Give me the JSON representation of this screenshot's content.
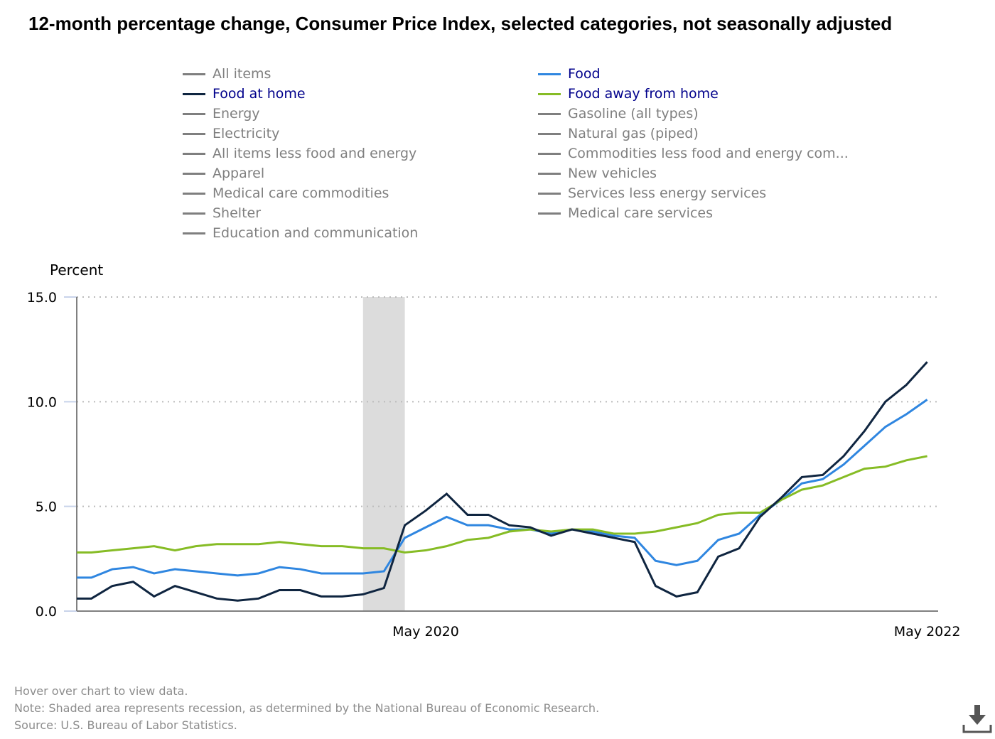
{
  "title": "12-month percentage change, Consumer Price Index, selected categories, not seasonally adjusted",
  "legend": [
    {
      "label": "All items",
      "active": false,
      "color": "#7f7f7f"
    },
    {
      "label": "Food",
      "active": true,
      "color": "#2f86e0"
    },
    {
      "label": "Food at home",
      "active": true,
      "color": "#0f2540"
    },
    {
      "label": "Food away from home",
      "active": true,
      "color": "#86bc25"
    },
    {
      "label": "Energy",
      "active": false,
      "color": "#7f7f7f"
    },
    {
      "label": "Gasoline (all types)",
      "active": false,
      "color": "#7f7f7f"
    },
    {
      "label": "Electricity",
      "active": false,
      "color": "#7f7f7f"
    },
    {
      "label": "Natural gas (piped)",
      "active": false,
      "color": "#7f7f7f"
    },
    {
      "label": "All items less food and energy",
      "active": false,
      "color": "#7f7f7f"
    },
    {
      "label": "Commodities less food and energy com...",
      "active": false,
      "color": "#7f7f7f"
    },
    {
      "label": "Apparel",
      "active": false,
      "color": "#7f7f7f"
    },
    {
      "label": "New vehicles",
      "active": false,
      "color": "#7f7f7f"
    },
    {
      "label": "Medical care commodities",
      "active": false,
      "color": "#7f7f7f"
    },
    {
      "label": "Services less energy services",
      "active": false,
      "color": "#7f7f7f"
    },
    {
      "label": "Shelter",
      "active": false,
      "color": "#7f7f7f"
    },
    {
      "label": "Medical care services",
      "active": false,
      "color": "#7f7f7f"
    },
    {
      "label": "Education and communication",
      "active": false,
      "color": "#7f7f7f"
    }
  ],
  "chart_data": {
    "type": "line",
    "title": "12-month percentage change, Consumer Price Index, selected categories, not seasonally adjusted",
    "ylabel": "Percent",
    "xlabel": "",
    "ylim": [
      0,
      15
    ],
    "y_ticks": [
      "0.0",
      "5.0",
      "10.0",
      "15.0"
    ],
    "y_tick_values": [
      0,
      5,
      10,
      15
    ],
    "x_start_month": "2018-12",
    "x_min_month_index": 0.6,
    "x_ticks": [
      {
        "label": "May 2020",
        "month_index": 17
      },
      {
        "label": "May 2022",
        "month_index": 41
      }
    ],
    "recession": {
      "start_month_index": 14,
      "end_month_index": 16
    },
    "grid": true,
    "series": [
      {
        "name": "Food",
        "color": "#2f86e0",
        "values": [
          1.6,
          1.6,
          2.0,
          2.1,
          1.8,
          2.0,
          1.9,
          1.8,
          1.7,
          1.8,
          2.1,
          2.0,
          1.8,
          1.8,
          1.8,
          1.9,
          3.5,
          4.0,
          4.5,
          4.1,
          4.1,
          3.9,
          3.9,
          3.7,
          3.9,
          3.8,
          3.6,
          3.5,
          2.4,
          2.2,
          2.4,
          3.4,
          3.7,
          4.6,
          5.3,
          6.1,
          6.3,
          7.0,
          7.9,
          8.8,
          9.4,
          10.1
        ]
      },
      {
        "name": "Food away from home",
        "color": "#86bc25",
        "values": [
          2.8,
          2.8,
          2.9,
          3.0,
          3.1,
          2.9,
          3.1,
          3.2,
          3.2,
          3.2,
          3.3,
          3.2,
          3.1,
          3.1,
          3.0,
          3.0,
          2.8,
          2.9,
          3.1,
          3.4,
          3.5,
          3.8,
          3.9,
          3.8,
          3.9,
          3.9,
          3.7,
          3.7,
          3.8,
          4.0,
          4.2,
          4.6,
          4.7,
          4.7,
          5.3,
          5.8,
          6.0,
          6.4,
          6.8,
          6.9,
          7.2,
          7.4
        ]
      },
      {
        "name": "Food at home",
        "color": "#0f2540",
        "values": [
          0.6,
          0.6,
          1.2,
          1.4,
          0.7,
          1.2,
          0.9,
          0.6,
          0.5,
          0.6,
          1.0,
          1.0,
          0.7,
          0.7,
          0.8,
          1.1,
          4.1,
          4.8,
          5.6,
          4.6,
          4.6,
          4.1,
          4.0,
          3.6,
          3.9,
          3.7,
          3.5,
          3.3,
          1.2,
          0.7,
          0.9,
          2.6,
          3.0,
          4.5,
          5.4,
          6.4,
          6.5,
          7.4,
          8.6,
          10.0,
          10.8,
          11.9
        ]
      }
    ]
  },
  "footer": {
    "hover": "Hover over chart to view data.",
    "note": "Note: Shaded area represents recession, as determined by the National Bureau of Economic Research.",
    "source": "Source: U.S. Bureau of Labor Statistics."
  },
  "download_icon": "download-icon"
}
